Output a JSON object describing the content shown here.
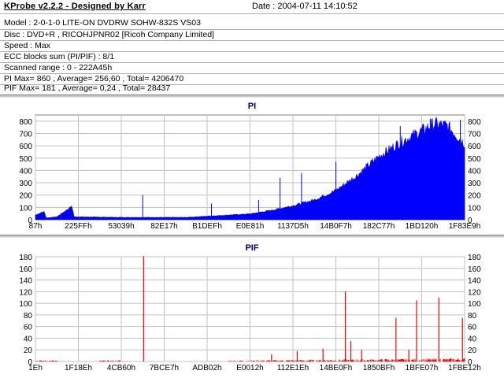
{
  "header": {
    "title": "KProbe v2.2.2 - Designed by Karr",
    "date": "Date : 2004-07-11 14:10:52"
  },
  "info": {
    "model": "Model : 2-0-1-0 LITE-ON DVDRW SOHW-832S  VS03",
    "disc": "Disc : DVD+R , RICOHJPNR02 [Ricoh Company Limited]",
    "speed": "Speed : Max",
    "ecc": "ECC blocks sum (PI/PIF) : 8/1",
    "range": "Scanned range : 0 - 222A45h",
    "pi": "PI Max= 860 , Average= 256,60 , Total= 4206470",
    "pif": "PIF Max= 181 , Average= 0,24 , Total= 28437"
  },
  "colors": {
    "pi_fill": "#0000ff",
    "pif_line": "#ff0000",
    "grid": "#c0c0c0",
    "title": "#000060"
  },
  "chart_data": [
    {
      "type": "area",
      "title": "PI",
      "ylim": [
        0,
        850
      ],
      "yticks": [
        0,
        100,
        200,
        300,
        400,
        500,
        600,
        700,
        800
      ],
      "xlabels": [
        "87h",
        "225FFh",
        "53039h",
        "82E17h",
        "B1DEFh",
        "E0E81h",
        "1137D5h",
        "14B0F7h",
        "182C77h",
        "1BD120h",
        "1F83E9h"
      ],
      "grid": true,
      "envelope": [
        [
          0,
          40
        ],
        [
          0.02,
          70
        ],
        [
          0.025,
          15
        ],
        [
          0.05,
          25
        ],
        [
          0.085,
          115
        ],
        [
          0.09,
          25
        ],
        [
          0.2,
          20
        ],
        [
          0.35,
          20
        ],
        [
          0.45,
          40
        ],
        [
          0.5,
          50
        ],
        [
          0.55,
          80
        ],
        [
          0.6,
          120
        ],
        [
          0.65,
          170
        ],
        [
          0.7,
          250
        ],
        [
          0.75,
          380
        ],
        [
          0.8,
          540
        ],
        [
          0.85,
          660
        ],
        [
          0.9,
          760
        ],
        [
          0.93,
          820
        ],
        [
          0.96,
          800
        ],
        [
          1,
          650
        ]
      ],
      "spikes": [
        [
          0.25,
          200
        ],
        [
          0.41,
          130
        ],
        [
          0.52,
          160
        ],
        [
          0.57,
          340
        ],
        [
          0.62,
          380
        ],
        [
          0.7,
          470
        ],
        [
          0.85,
          760
        ],
        [
          0.92,
          820
        ],
        [
          0.99,
          810
        ]
      ]
    },
    {
      "type": "bar",
      "title": "PIF",
      "ylim": [
        0,
        180
      ],
      "yticks": [
        0,
        20,
        40,
        60,
        80,
        100,
        120,
        140,
        160,
        180
      ],
      "xlabels": [
        "1Eh",
        "1F18Eh",
        "4CB60h",
        "7BCE7h",
        "ADB02h",
        "E0012h",
        "112E1Eh",
        "14BE0Fh",
        "1850BFh",
        "1BFE07h",
        "1FBE12h"
      ],
      "grid": true,
      "spikes": [
        [
          0.252,
          181
        ],
        [
          0.55,
          12
        ],
        [
          0.61,
          18
        ],
        [
          0.67,
          22
        ],
        [
          0.722,
          120
        ],
        [
          0.735,
          35
        ],
        [
          0.76,
          20
        ],
        [
          0.84,
          75
        ],
        [
          0.87,
          20
        ],
        [
          0.888,
          105
        ],
        [
          0.94,
          110
        ],
        [
          0.995,
          75
        ]
      ],
      "noise_start": 0.45,
      "noise_level": 6
    }
  ]
}
